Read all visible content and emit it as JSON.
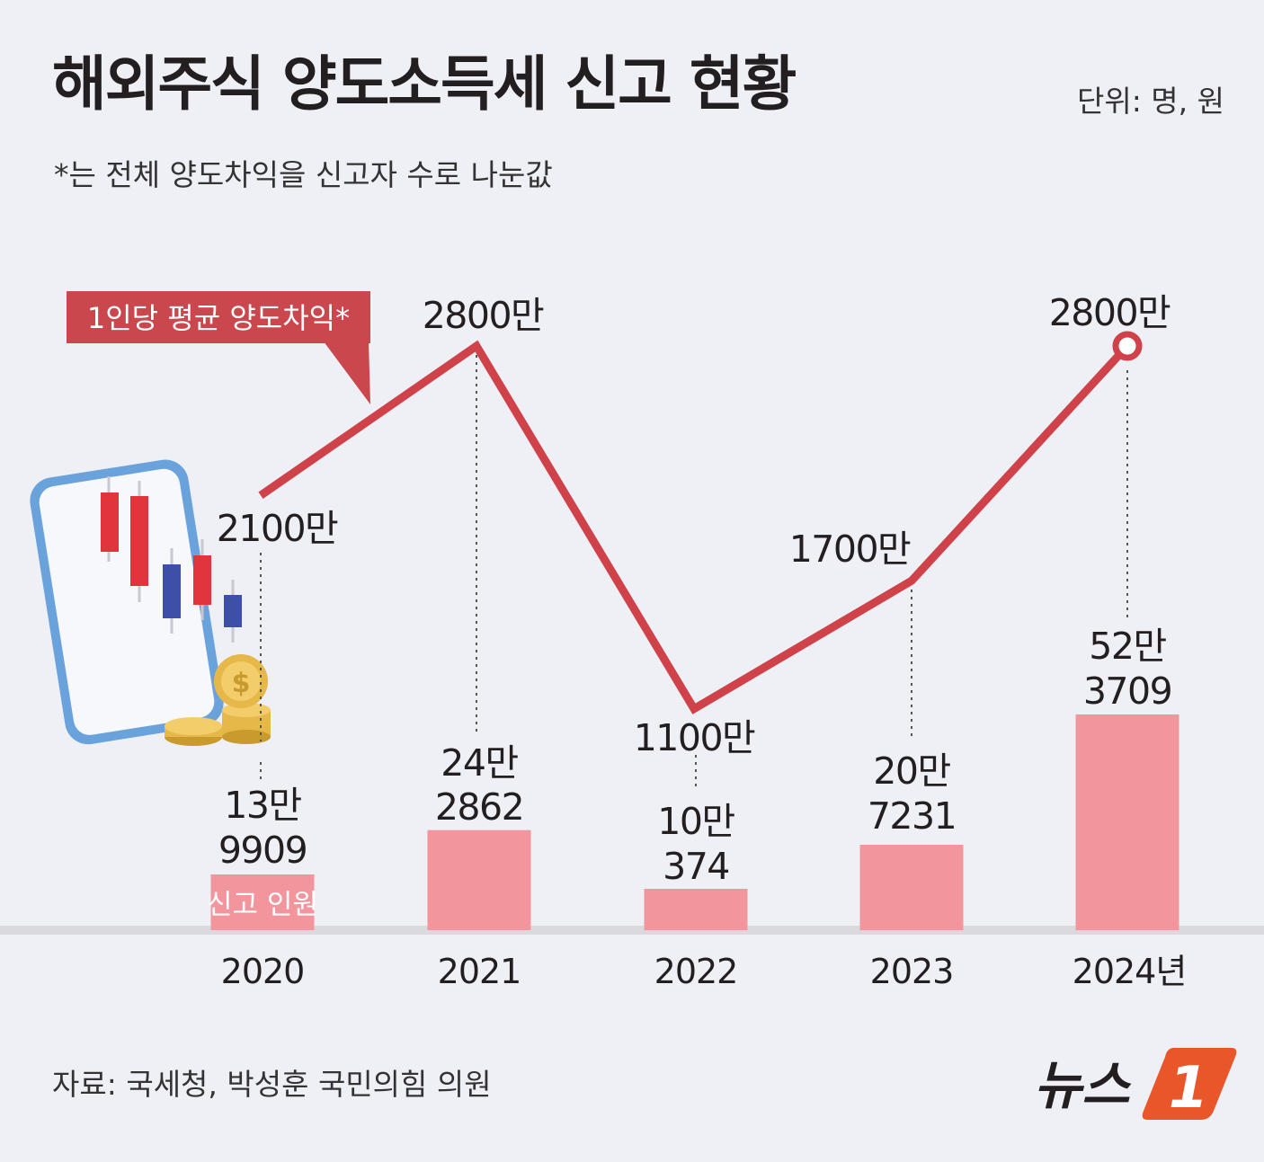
{
  "title": "해외주식 양도소득세 신고 현황",
  "unit": "단위: 명, 원",
  "footnote": "*는 전체 양도차익을 신고자 수로 나눈값",
  "source": "자료: 국세청, 박성훈 국민의힘 의원",
  "logo": {
    "text": "뉴스",
    "mark": "1"
  },
  "colors": {
    "line": "#cf4249",
    "bar": "#f2959d",
    "callout": "#c9474d",
    "baseline": "#d9d9de",
    "logo_orange": "#e8562a"
  },
  "icons": [
    "smartphone-candlestick-icon",
    "coin-stack-icon"
  ],
  "chart_data": {
    "type": "bar+line",
    "categories": [
      "2020",
      "2021",
      "2022",
      "2023",
      "2024년"
    ],
    "bar_series": {
      "name": "신고 인원",
      "values": [
        139909,
        242862,
        100374,
        207231,
        523709
      ],
      "labels": [
        [
          "13만",
          "9909"
        ],
        [
          "24만",
          "2862"
        ],
        [
          "10만",
          "374"
        ],
        [
          "20만",
          "7231"
        ],
        [
          "52만",
          "3709"
        ]
      ]
    },
    "line_series": {
      "name": "1인당 평균 양도차익*",
      "values": [
        21000000,
        28000000,
        11000000,
        17000000,
        28000000
      ],
      "labels": [
        "2100만",
        "2800만",
        "1100만",
        "1700만",
        "2800만"
      ]
    }
  }
}
